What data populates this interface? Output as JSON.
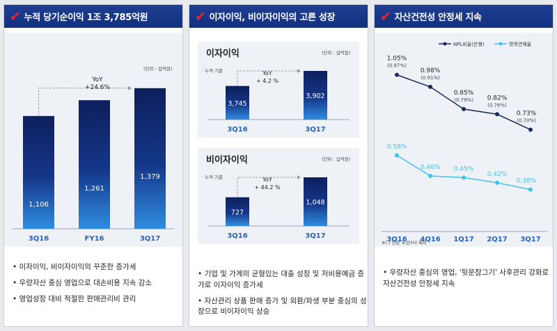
{
  "panels": [
    {
      "title": "누적 당기순이익 1조 3,785억원",
      "unit": "(단위 : 십억원)",
      "yoy_label": "YoY",
      "yoy_value": "+24.6%",
      "bullets": [
        "이자이익, 비이자이익의 꾸준한 증가세",
        "우량자산 중심 영업으로 대손비용 지속 감소",
        "영업성장 대비 적절한 판매관리비 관리"
      ]
    },
    {
      "title": "이자이익, 비이자이익의 고른 성장",
      "sub1_title": "이자이익",
      "sub1_unit": "(단위 : 십억원)",
      "sub1_note": "· 누적 기준",
      "sub1_yoy_label": "YoY",
      "sub1_yoy_value": "+ 4.2 %",
      "sub2_title": "비이자이익",
      "sub2_unit": "(단위 : 십억원)",
      "sub2_note": "· 누적 기준",
      "sub2_yoy_label": "YoY",
      "sub2_yoy_value": "+ 44.2 %",
      "bullets": [
        "기업 및 가계의 균형있는 대출 성장 및 저비용예금 증가로 이자이익 증가세",
        "자산관리 상품 판매 증가 및 외환/파생 부분 중심의 성장으로 비이자이익 상승"
      ]
    },
    {
      "title": "자산건전성 안정세 지속",
      "footnote": "※( ) 안은 조선3사 제외",
      "bullets": [
        "우량자산 중심의 영업, '뒷문잠그기' 사후관리 강화로 자산건전성 안정세 지속"
      ]
    }
  ],
  "colors": {
    "bar_dark": "#0d1f5c",
    "bar_light": "#2f8de0",
    "npl": "#1b2a5c",
    "delinq": "#3fc4e8",
    "accent": "#e8232b"
  },
  "chart_data": [
    {
      "type": "bar",
      "title": "누적 당기순이익",
      "categories": [
        "3Q16",
        "FY16",
        "3Q17"
      ],
      "values": [
        1106,
        1261,
        1379
      ],
      "value_labels": [
        "1,106",
        "1,261",
        "1,379"
      ],
      "ylim": [
        0,
        1600
      ]
    },
    {
      "type": "bar",
      "title": "이자이익",
      "categories": [
        "3Q16",
        "3Q17"
      ],
      "values": [
        3745,
        3902
      ],
      "value_labels": [
        "3,745",
        "3,902"
      ]
    },
    {
      "type": "bar",
      "title": "비이자이익",
      "categories": [
        "3Q16",
        "3Q17"
      ],
      "values": [
        727,
        1048
      ],
      "value_labels": [
        "727",
        "1,048"
      ]
    },
    {
      "type": "line",
      "title": "자산건전성",
      "categories": [
        "3Q16",
        "4Q16",
        "1Q17",
        "2Q17",
        "3Q17"
      ],
      "ylim": [
        0.2,
        1.15
      ],
      "series": [
        {
          "name": "NPL비율(은행)",
          "values": [
            1.05,
            0.98,
            0.85,
            0.82,
            0.73
          ],
          "labels": [
            "1.05%",
            "0.98%",
            "0.85%",
            "0.82%",
            "0.73%"
          ],
          "sub_labels": [
            "(0.97%)",
            "(0.91%)",
            "(0.79%)",
            "(0.76%)",
            "(0.70%)"
          ]
        },
        {
          "name": "명목연체율",
          "values": [
            0.58,
            0.46,
            0.45,
            0.42,
            0.38
          ],
          "labels": [
            "0.58%",
            "0.46%",
            "0.45%",
            "0.42%",
            "0.38%"
          ]
        }
      ]
    }
  ]
}
